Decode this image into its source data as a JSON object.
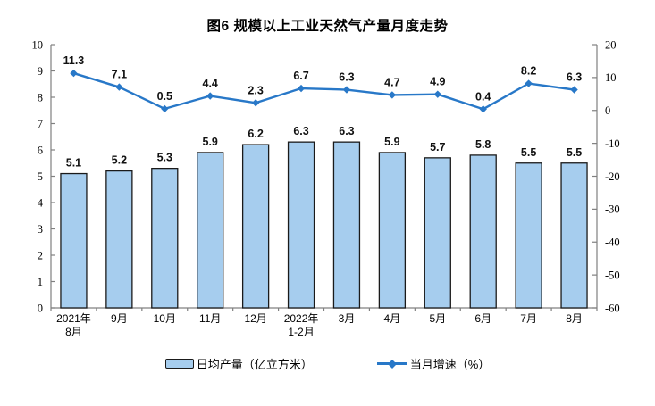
{
  "chart_data": {
    "type": "bar",
    "title": "图6 规模以上工业天然气产量月度走势",
    "categories": [
      [
        "2021年",
        "8月"
      ],
      [
        "9月"
      ],
      [
        "10月"
      ],
      [
        "11月"
      ],
      [
        "12月"
      ],
      [
        "2022年",
        "1-2月"
      ],
      [
        "3月"
      ],
      [
        "4月"
      ],
      [
        "5月"
      ],
      [
        "6月"
      ],
      [
        "7月"
      ],
      [
        "8月"
      ]
    ],
    "series": [
      {
        "name": "日均产量（亿立方米）",
        "type": "bar",
        "axis": "left",
        "values": [
          5.1,
          5.2,
          5.3,
          5.9,
          6.2,
          6.3,
          6.3,
          5.9,
          5.7,
          5.8,
          5.5,
          5.5
        ],
        "color": "#A6CDEE",
        "border_color": "#1a1a1a"
      },
      {
        "name": "当月增速（%）",
        "type": "line",
        "axis": "right",
        "marker": "diamond",
        "values": [
          11.3,
          7.1,
          0.5,
          4.4,
          2.3,
          6.7,
          6.3,
          4.7,
          4.9,
          0.4,
          8.2,
          6.3
        ],
        "color": "#2878C8"
      }
    ],
    "left_axis": {
      "min": 0,
      "max": 10,
      "step": 1,
      "ticks": [
        10,
        9,
        8,
        7,
        6,
        5,
        4,
        3,
        2,
        1,
        0
      ]
    },
    "right_axis": {
      "min": -60,
      "max": 20,
      "step": 10,
      "ticks": [
        20,
        10,
        0,
        -10,
        -20,
        -30,
        -40,
        -50,
        -60
      ]
    },
    "grid": false,
    "legend_position": "bottom",
    "axis_color": "#808080",
    "text_color": "#000000"
  }
}
